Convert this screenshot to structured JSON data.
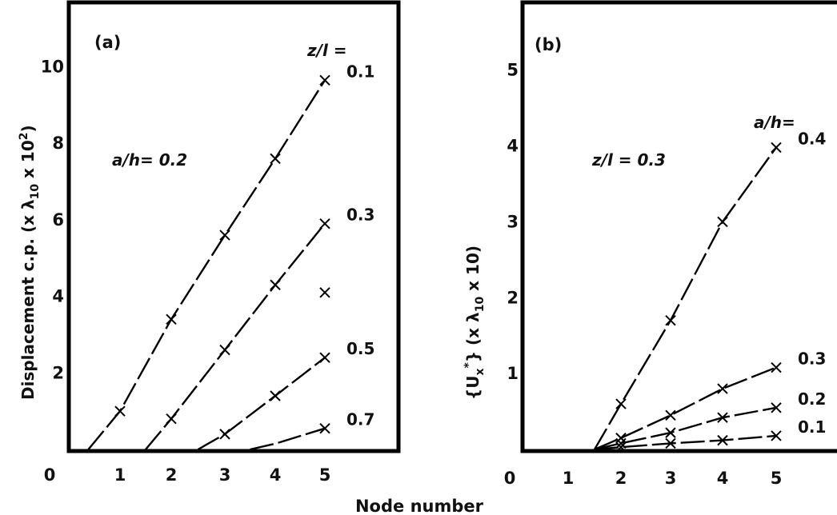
{
  "figure": {
    "xlabel": "Node number"
  },
  "chart_data": [
    {
      "type": "line",
      "panel_label": "(a)",
      "ylabel": "Displacement c.p. (x λ10 x 10²)",
      "ylabel_parts": {
        "main": "Displacement c.p. (x λ",
        "sub": "10",
        "mid": " x 10",
        "sup": "2",
        "end": ")"
      },
      "xlim": [
        0,
        6.3
      ],
      "ylim": [
        0,
        11.6
      ],
      "x_ticks": [
        0,
        1,
        2,
        3,
        4,
        5
      ],
      "y_ticks": [
        2,
        4,
        6,
        8,
        10
      ],
      "parameter_text": "a/h= 0.2",
      "legend_header": "z/l =",
      "grid": false,
      "series": [
        {
          "name": "0.1",
          "x": [
            0.55,
            1,
            2,
            3,
            4,
            5
          ],
          "y": [
            0,
            1.0,
            3.4,
            5.6,
            7.6,
            9.65
          ],
          "marker_x": [
            1,
            2,
            3,
            4,
            5
          ],
          "marker_y": [
            1.0,
            3.4,
            5.6,
            7.6,
            9.65
          ]
        },
        {
          "name": "0.3",
          "x": [
            1.5,
            2,
            3,
            4,
            5
          ],
          "y": [
            0,
            0.8,
            2.6,
            4.3,
            5.9
          ],
          "marker_x": [
            2,
            3,
            4,
            5
          ],
          "marker_y": [
            0.8,
            2.6,
            4.3,
            5.9
          ]
        },
        {
          "name": "0.5",
          "x": [
            2.5,
            3,
            4,
            5
          ],
          "y": [
            0,
            0.4,
            1.4,
            2.4
          ],
          "marker_x": [
            3,
            4,
            5
          ],
          "marker_y": [
            0.4,
            1.4,
            2.4
          ]
        },
        {
          "name": "0.7",
          "x": [
            3.5,
            4,
            5
          ],
          "y": [
            0,
            0.15,
            0.55
          ],
          "marker_x": [
            5
          ],
          "marker_y": [
            0.55
          ]
        }
      ],
      "extra_markers": [
        {
          "x": 5,
          "y": 4.1
        }
      ]
    },
    {
      "type": "line",
      "panel_label": "(b)",
      "ylabel": "{Ux*} (x λ10 x 10)",
      "ylabel_parts": {
        "open": "{U",
        "sub1": "x",
        "sup1": "*",
        "close": "} (x λ",
        "sub2": "10",
        "end": " x 10)"
      },
      "xlim": [
        0,
        6.3
      ],
      "ylim": [
        0,
        5.85
      ],
      "x_ticks": [
        0,
        1,
        2,
        3,
        4,
        5
      ],
      "y_ticks": [
        1,
        2,
        3,
        4,
        5
      ],
      "parameter_text": "z/l = 0.3",
      "legend_header": "a/h=",
      "grid": false,
      "series": [
        {
          "name": "0.4",
          "x": [
            1.5,
            2,
            3,
            4,
            5
          ],
          "y": [
            0,
            0.6,
            1.7,
            3.0,
            3.98
          ],
          "marker_x": [
            2,
            3,
            4,
            5
          ],
          "marker_y": [
            0.6,
            1.7,
            3.0,
            3.98
          ]
        },
        {
          "name": "0.3",
          "x": [
            1.5,
            2,
            3,
            4,
            5
          ],
          "y": [
            0,
            0.15,
            0.45,
            0.8,
            1.08
          ],
          "marker_x": [
            2,
            3,
            4,
            5
          ],
          "marker_y": [
            0.15,
            0.45,
            0.8,
            1.08
          ]
        },
        {
          "name": "0.2",
          "x": [
            1.5,
            2,
            3,
            4,
            5
          ],
          "y": [
            0,
            0.08,
            0.22,
            0.42,
            0.55
          ],
          "marker_x": [
            2,
            3,
            4,
            5
          ],
          "marker_y": [
            0.08,
            0.22,
            0.42,
            0.55
          ]
        },
        {
          "name": "0.1",
          "x": [
            1.5,
            2,
            3,
            4,
            5
          ],
          "y": [
            0,
            0.03,
            0.08,
            0.12,
            0.18
          ],
          "marker_x": [
            2,
            3,
            4,
            5
          ],
          "marker_y": [
            0.03,
            0.08,
            0.12,
            0.18
          ]
        }
      ],
      "extra_markers": []
    }
  ]
}
